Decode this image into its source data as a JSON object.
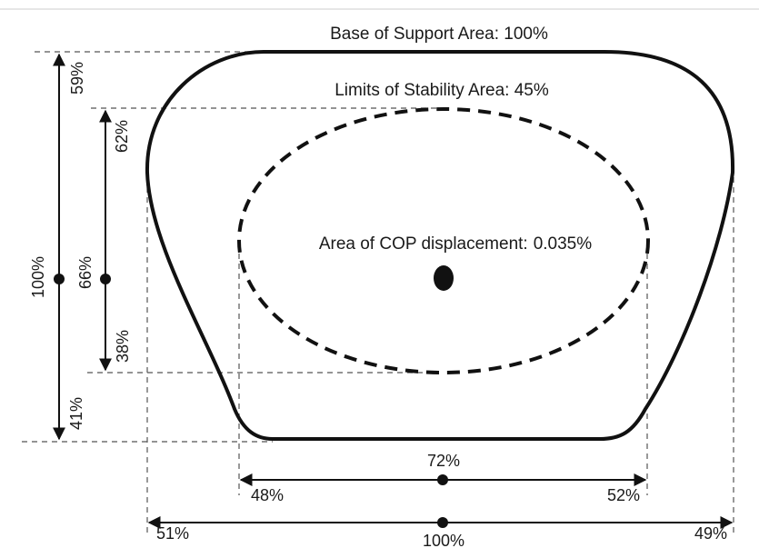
{
  "base_of_support": {
    "label": "Base of Support Area",
    "value": ": 100%"
  },
  "limits_of_stability": {
    "label": "Limits of Stability Area",
    "value": ": 45%"
  },
  "cop_displacement": {
    "label": "Area of COP displacement:",
    "value": "0.035%"
  },
  "outer_vertical": {
    "total": "100%",
    "upper": "59%",
    "lower": "41%"
  },
  "inner_vertical": {
    "total": "66%",
    "upper": "62%",
    "lower": "38%"
  },
  "inner_horizontal": {
    "total": "72%",
    "left": "48%",
    "right": "52%"
  },
  "outer_horizontal": {
    "total": "100%",
    "left": "51%",
    "right": "49%"
  },
  "colors": {
    "ink": "#111111",
    "guide": "#555555",
    "background": "#ffffff"
  }
}
